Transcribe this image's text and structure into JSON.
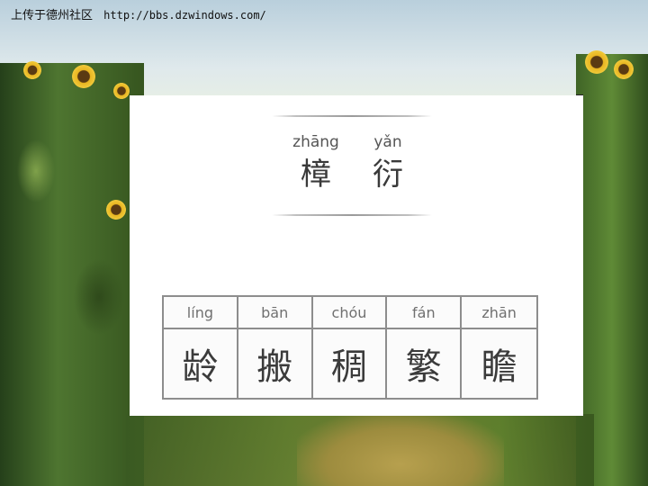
{
  "header": {
    "site_name": "上传于德州社区",
    "site_url": "http://bbs.dzwindows.com/"
  },
  "word": {
    "syllables": [
      {
        "pinyin": "zhāng",
        "hanzi": "樟"
      },
      {
        "pinyin": "yǎn",
        "hanzi": "衍"
      }
    ]
  },
  "characters": [
    {
      "pinyin": "líng",
      "hanzi": "龄"
    },
    {
      "pinyin": "bān",
      "hanzi": "搬"
    },
    {
      "pinyin": "chóu",
      "hanzi": "稠"
    },
    {
      "pinyin": "fán",
      "hanzi": "繁"
    },
    {
      "pinyin": "zhān",
      "hanzi": "瞻"
    }
  ]
}
